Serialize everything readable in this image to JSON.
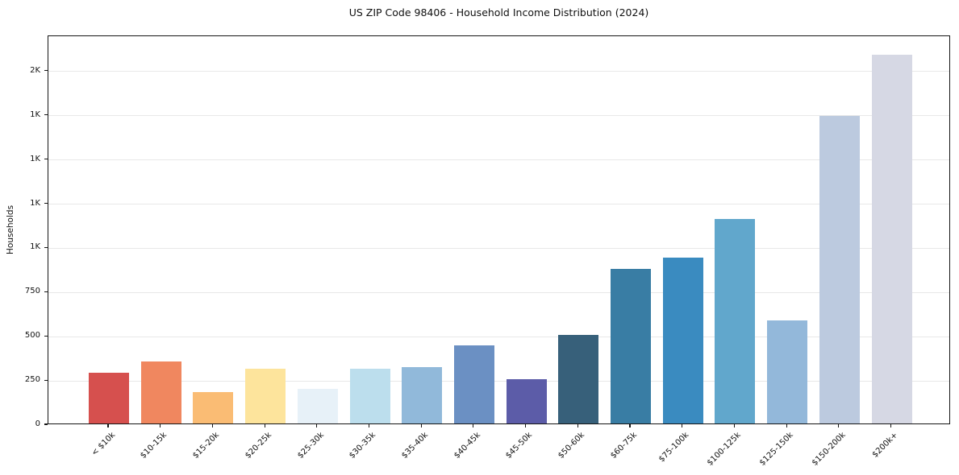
{
  "chart_data": {
    "type": "bar",
    "title": "US ZIP Code 98406 - Household Income Distribution (2024)",
    "xlabel": "",
    "ylabel": "Households",
    "categories": [
      "< $10k",
      "$10-15k",
      "$15-20k",
      "$20-25k",
      "$25-30k",
      "$30-35k",
      "$35-40k",
      "$40-45k",
      "$45-50k",
      "$50-60k",
      "$60-75k",
      "$75-100k",
      "$100-125k",
      "$125-150k",
      "$150-200k",
      "$200k+"
    ],
    "values": [
      285,
      350,
      176,
      308,
      194,
      311,
      317,
      440,
      253,
      503,
      876,
      940,
      1158,
      585,
      1740,
      2086
    ],
    "bar_colors": [
      "#d6504e",
      "#f0875f",
      "#fabc74",
      "#fde49c",
      "#e7f1f8",
      "#bcdeed",
      "#91b9da",
      "#6b90c3",
      "#5c5ca8",
      "#37607a",
      "#397da4",
      "#3a8bc0",
      "#61a7cc",
      "#93b8da",
      "#bccadf",
      "#d6d8e4"
    ],
    "ylim": [
      0,
      2200
    ],
    "yticks": [
      {
        "value": 0,
        "label": "0"
      },
      {
        "value": 250,
        "label": "250"
      },
      {
        "value": 500,
        "label": "500"
      },
      {
        "value": 750,
        "label": "750"
      },
      {
        "value": 1000,
        "label": "1K"
      },
      {
        "value": 1250,
        "label": "1K"
      },
      {
        "value": 1500,
        "label": "1K"
      },
      {
        "value": 1750,
        "label": "1K"
      },
      {
        "value": 2000,
        "label": "2K"
      }
    ],
    "grid": "horizontal",
    "legend": "none",
    "background_color": "#ffffff",
    "gridline_color": "#e8e8e8",
    "spine_color": "#151515"
  }
}
